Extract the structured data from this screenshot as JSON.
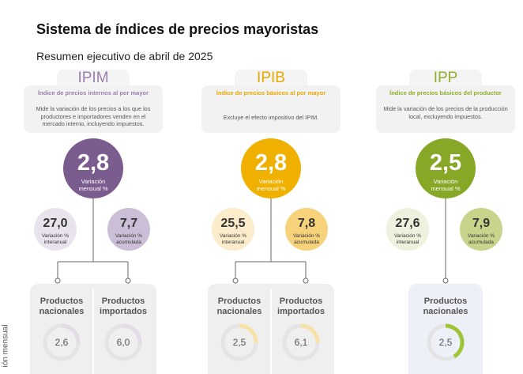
{
  "title": "Sistema de índices de precios mayoristas",
  "subtitle": "Resumen ejecutivo de abril de 2025",
  "side_label": "ión mensual",
  "indices": [
    {
      "name": "IPIM",
      "full_name": "Índice de precios internos al por mayor",
      "description": "Mide la variación de los precios a los que los productores e importadores venden en el mercado interno, incluyendo impuestos.",
      "monthly": {
        "value": "2,8",
        "label": "Variación mensual %"
      },
      "interannual": {
        "value": "27,0",
        "label": "Variación % interanual"
      },
      "cumulative": {
        "value": "7,7",
        "label": "Variación % acumulada"
      },
      "products": [
        {
          "label": "Productos nacionales",
          "value": "2,6"
        },
        {
          "label": "Productos importados",
          "value": "6,0"
        }
      ]
    },
    {
      "name": "IPIB",
      "full_name": "Índice de precios básicos al por mayor",
      "description": "Excluye el efecto impositivo del IPIM.",
      "monthly": {
        "value": "2,8",
        "label": "Variación mensual %"
      },
      "interannual": {
        "value": "25,5",
        "label": "Variación % interanual"
      },
      "cumulative": {
        "value": "7,8",
        "label": "Variación % acumulada"
      },
      "products": [
        {
          "label": "Productos nacionales",
          "value": "2,5"
        },
        {
          "label": "Productos importados",
          "value": "6,1"
        }
      ]
    },
    {
      "name": "IPP",
      "full_name": "Índice de precios básicos del productor",
      "description": "Mide la variación de los precios de la producción local, excluyendo impuestos.",
      "monthly": {
        "value": "2,5",
        "label": "Variación mensual %"
      },
      "interannual": {
        "value": "27,6",
        "label": "Variación % interanual"
      },
      "cumulative": {
        "value": "7,9",
        "label": "Variación % acumulada"
      },
      "products": [
        {
          "label": "Productos nacionales",
          "value": "2,5"
        }
      ]
    }
  ]
}
